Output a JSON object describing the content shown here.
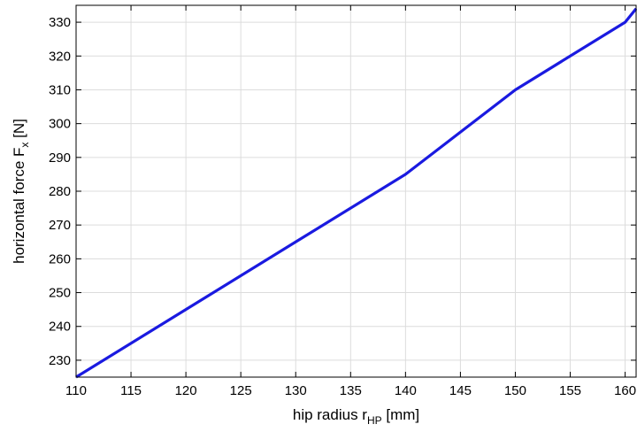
{
  "chart_data": {
    "type": "line",
    "title": "",
    "xlabel": {
      "main": "hip radius r",
      "subscript": "HP",
      "unit": " [mm]"
    },
    "ylabel": {
      "main": "horizontal force F",
      "subscript": "x",
      "unit": " [N]"
    },
    "xlim": [
      110,
      161
    ],
    "ylim": [
      225,
      335
    ],
    "xticks": [
      110,
      115,
      120,
      125,
      130,
      135,
      140,
      145,
      150,
      155,
      160
    ],
    "yticks": [
      230,
      240,
      250,
      260,
      270,
      280,
      290,
      300,
      310,
      320,
      330
    ],
    "grid": true,
    "series": [
      {
        "color": "#1a1ae0",
        "x": [
          110,
          120,
          130,
          140,
          150,
          160,
          161
        ],
        "y": [
          225,
          245,
          265,
          285,
          310,
          330,
          334
        ]
      }
    ]
  }
}
